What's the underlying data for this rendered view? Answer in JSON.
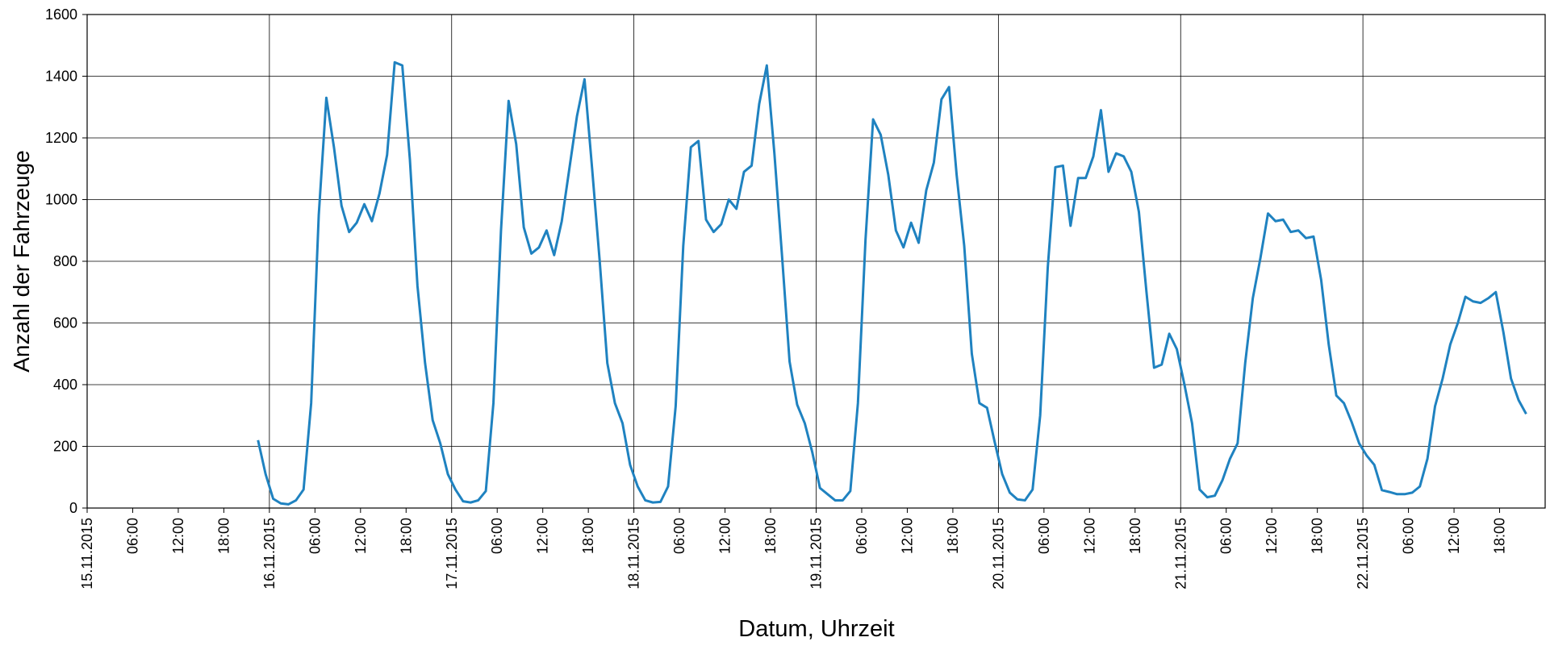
{
  "chart_data": {
    "type": "line",
    "x_label": "Datum, Uhrzeit",
    "y_label": "Anzahl der Fahrzeuge",
    "xlim": [
      0,
      192
    ],
    "ylim": [
      0,
      1600
    ],
    "yticks": [
      0,
      200,
      400,
      600,
      800,
      1000,
      1200,
      1400,
      1600
    ],
    "xticks": [
      {
        "value": 0,
        "label": "15.11.2015"
      },
      {
        "value": 6,
        "label": "06:00"
      },
      {
        "value": 12,
        "label": "12:00"
      },
      {
        "value": 18,
        "label": "18:00"
      },
      {
        "value": 24,
        "label": "16.11.2015"
      },
      {
        "value": 30,
        "label": "06:00"
      },
      {
        "value": 36,
        "label": "12:00"
      },
      {
        "value": 42,
        "label": "18:00"
      },
      {
        "value": 48,
        "label": "17.11.2015"
      },
      {
        "value": 54,
        "label": "06:00"
      },
      {
        "value": 60,
        "label": "12:00"
      },
      {
        "value": 66,
        "label": "18:00"
      },
      {
        "value": 72,
        "label": "18.11.2015"
      },
      {
        "value": 78,
        "label": "06:00"
      },
      {
        "value": 84,
        "label": "12:00"
      },
      {
        "value": 90,
        "label": "18:00"
      },
      {
        "value": 96,
        "label": "19.11.2015"
      },
      {
        "value": 102,
        "label": "06:00"
      },
      {
        "value": 108,
        "label": "12:00"
      },
      {
        "value": 114,
        "label": "18:00"
      },
      {
        "value": 120,
        "label": "20.11.2015"
      },
      {
        "value": 126,
        "label": "06:00"
      },
      {
        "value": 132,
        "label": "12:00"
      },
      {
        "value": 138,
        "label": "18:00"
      },
      {
        "value": 144,
        "label": "21.11.2015"
      },
      {
        "value": 150,
        "label": "06:00"
      },
      {
        "value": 156,
        "label": "12:00"
      },
      {
        "value": 162,
        "label": "18:00"
      },
      {
        "value": 168,
        "label": "22.11.2015"
      },
      {
        "value": 174,
        "label": "06:00"
      },
      {
        "value": 180,
        "label": "12:00"
      },
      {
        "value": 186,
        "label": "18:00"
      }
    ],
    "grid": true,
    "x": [
      22.5,
      23.5,
      24.5,
      25.5,
      26.5,
      27.5,
      28.5,
      29.5,
      30.5,
      31.5,
      32.5,
      33.5,
      34.5,
      35.5,
      36.5,
      37.5,
      38.5,
      39.5,
      40.5,
      41.5,
      42.5,
      43.5,
      44.5,
      45.5,
      46.5,
      47.5,
      48.5,
      49.5,
      50.5,
      51.5,
      52.5,
      53.5,
      54.5,
      55.5,
      56.5,
      57.5,
      58.5,
      59.5,
      60.5,
      61.5,
      62.5,
      63.5,
      64.5,
      65.5,
      66.5,
      67.5,
      68.5,
      69.5,
      70.5,
      71.5,
      72.5,
      73.5,
      74.5,
      75.5,
      76.5,
      77.5,
      78.5,
      79.5,
      80.5,
      81.5,
      82.5,
      83.5,
      84.5,
      85.5,
      86.5,
      87.5,
      88.5,
      89.5,
      90.5,
      91.5,
      92.5,
      93.5,
      94.5,
      95.5,
      96.5,
      97.5,
      98.5,
      99.5,
      100.5,
      101.5,
      102.5,
      103.5,
      104.5,
      105.5,
      106.5,
      107.5,
      108.5,
      109.5,
      110.5,
      111.5,
      112.5,
      113.5,
      114.5,
      115.5,
      116.5,
      117.5,
      118.5,
      119.5,
      120.5,
      121.5,
      122.5,
      123.5,
      124.5,
      125.5,
      126.5,
      127.5,
      128.5,
      129.5,
      130.5,
      131.5,
      132.5,
      133.5,
      134.5,
      135.5,
      136.5,
      137.5,
      138.5,
      139.5,
      140.5,
      141.5,
      142.5,
      143.5,
      144.5,
      145.5,
      146.5,
      147.5,
      148.5,
      149.5,
      150.5,
      151.5,
      152.5,
      153.5,
      154.5,
      155.5,
      156.5,
      157.5,
      158.5,
      159.5,
      160.5,
      161.5,
      162.5,
      163.5,
      164.5,
      165.5,
      166.5,
      167.5,
      168.5,
      169.5,
      170.5,
      171.5,
      172.5,
      173.5,
      174.5,
      175.5,
      176.5,
      177.5,
      178.5,
      179.5,
      180.5,
      181.5,
      182.5,
      183.5,
      184.5,
      185.5,
      186.5,
      187.5,
      188.5,
      189.5
    ],
    "series": [
      {
        "color": "#1f82c0",
        "values": [
          220,
          110,
          30,
          15,
          12,
          25,
          60,
          340,
          950,
          1330,
          1170,
          980,
          895,
          925,
          985,
          930,
          1020,
          1145,
          1445,
          1435,
          1130,
          720,
          470,
          285,
          210,
          110,
          60,
          22,
          18,
          25,
          55,
          340,
          900,
          1320,
          1180,
          910,
          825,
          845,
          900,
          820,
          930,
          1100,
          1270,
          1390,
          1100,
          800,
          470,
          340,
          275,
          140,
          70,
          25,
          18,
          20,
          70,
          330,
          850,
          1170,
          1190,
          935,
          895,
          920,
          1000,
          970,
          1090,
          1110,
          1310,
          1435,
          1150,
          820,
          475,
          335,
          275,
          180,
          65,
          45,
          25,
          25,
          55,
          340,
          870,
          1260,
          1210,
          1080,
          900,
          845,
          925,
          860,
          1030,
          1120,
          1325,
          1365,
          1080,
          850,
          500,
          340,
          325,
          215,
          110,
          50,
          28,
          25,
          60,
          300,
          780,
          1105,
          1110,
          915,
          1070,
          1070,
          1140,
          1290,
          1090,
          1150,
          1140,
          1090,
          960,
          700,
          455,
          465,
          565,
          515,
          400,
          275,
          60,
          35,
          40,
          90,
          160,
          210,
          470,
          680,
          810,
          955,
          930,
          935,
          895,
          900,
          875,
          880,
          740,
          530,
          365,
          340,
          280,
          210,
          170,
          140,
          58,
          52,
          45,
          45,
          50,
          70,
          160,
          330,
          420,
          530,
          600,
          685,
          670,
          665,
          680,
          700,
          570,
          420,
          350,
          305
        ]
      }
    ]
  }
}
